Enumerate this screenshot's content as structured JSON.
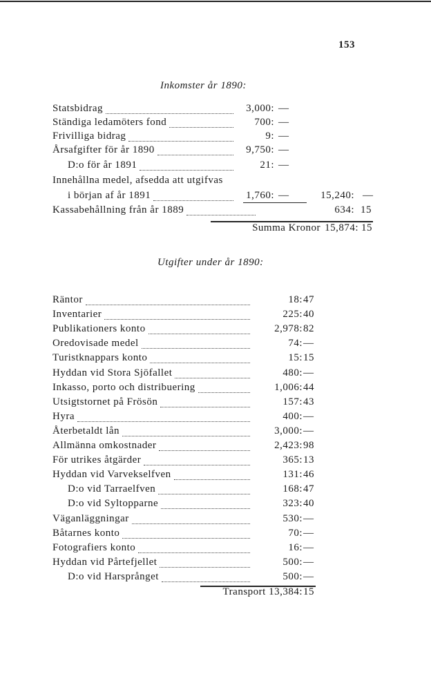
{
  "page_number": "153",
  "income": {
    "heading": "Inkomster år 1890:",
    "rows": [
      {
        "label": "Statsbidrag",
        "indent": false,
        "amount": "3,000:",
        "ore": "—"
      },
      {
        "label": "Ständiga ledamöters fond",
        "indent": false,
        "amount": "700:",
        "ore": "—"
      },
      {
        "label": "Frivilliga bidrag",
        "indent": false,
        "amount": "9:",
        "ore": "—"
      },
      {
        "label": "Årsafgifter för år 1890",
        "indent": false,
        "amount": "9,750:",
        "ore": "—"
      },
      {
        "label": "D:o      för år 1891",
        "indent": true,
        "amount": "21:",
        "ore": "—"
      },
      {
        "label": "Innehållna medel, afsedda att utgifvas",
        "indent": false,
        "noleader": true
      },
      {
        "label": "i början af år 1891",
        "indent": true,
        "amount": "1,760:",
        "ore": "—",
        "subtotal": "15,240:",
        "subtotal_ore": "—"
      },
      {
        "label": "Kassabehållning från år 1889",
        "indent": false,
        "subtotal": "634:",
        "subtotal_ore": "15"
      }
    ],
    "total_label": "Summa Kronor",
    "total": "15,874:",
    "total_ore": "15"
  },
  "expenses": {
    "heading": "Utgifter under år 1890:",
    "rows": [
      {
        "label": "Räntor",
        "indent": false,
        "amount": "18:",
        "ore": "47"
      },
      {
        "label": "Inventarier",
        "indent": false,
        "amount": "225:",
        "ore": "40"
      },
      {
        "label": "Publikationers konto",
        "indent": false,
        "amount": "2,978:",
        "ore": "82"
      },
      {
        "label": "Oredovisade medel",
        "indent": false,
        "amount": "74:",
        "ore": "—"
      },
      {
        "label": "Turistknappars konto",
        "indent": false,
        "amount": "15:",
        "ore": "15"
      },
      {
        "label": "Hyddan vid Stora Sjöfallet",
        "indent": false,
        "amount": "480:",
        "ore": "—"
      },
      {
        "label": "Inkasso, porto och distribuering",
        "indent": false,
        "amount": "1,006:",
        "ore": "44"
      },
      {
        "label": "Utsigtstornet på Frösön",
        "indent": false,
        "amount": "157:",
        "ore": "43"
      },
      {
        "label": "Hyra",
        "indent": false,
        "amount": "400:",
        "ore": "—"
      },
      {
        "label": "Återbetaldt lån",
        "indent": false,
        "amount": "3,000:",
        "ore": "—"
      },
      {
        "label": "Allmänna omkostnader",
        "indent": false,
        "amount": "2,423:",
        "ore": "98"
      },
      {
        "label": "För utrikes åtgärder",
        "indent": false,
        "amount": "365:",
        "ore": "13"
      },
      {
        "label": "Hyddan vid Varvekselfven",
        "indent": false,
        "amount": "131:",
        "ore": "46"
      },
      {
        "label": "D:o   vid Tarraelfven",
        "indent": true,
        "amount": "168:",
        "ore": "47"
      },
      {
        "label": "D:o   vid Syltopparne",
        "indent": true,
        "amount": "323:",
        "ore": "40"
      },
      {
        "label": "Väganläggningar",
        "indent": false,
        "amount": "530:",
        "ore": "—"
      },
      {
        "label": "Båtarnes konto",
        "indent": false,
        "amount": "70:",
        "ore": "—"
      },
      {
        "label": "Fotografiers konto",
        "indent": false,
        "amount": "16:",
        "ore": "—"
      },
      {
        "label": "Hyddan vid Pårtefjellet",
        "indent": false,
        "amount": "500:",
        "ore": "—"
      },
      {
        "label": "D:o   vid Harsprånget",
        "indent": true,
        "amount": "500:",
        "ore": "—"
      }
    ],
    "total_label": "Transport",
    "total": "13,384:",
    "total_ore": "15"
  }
}
